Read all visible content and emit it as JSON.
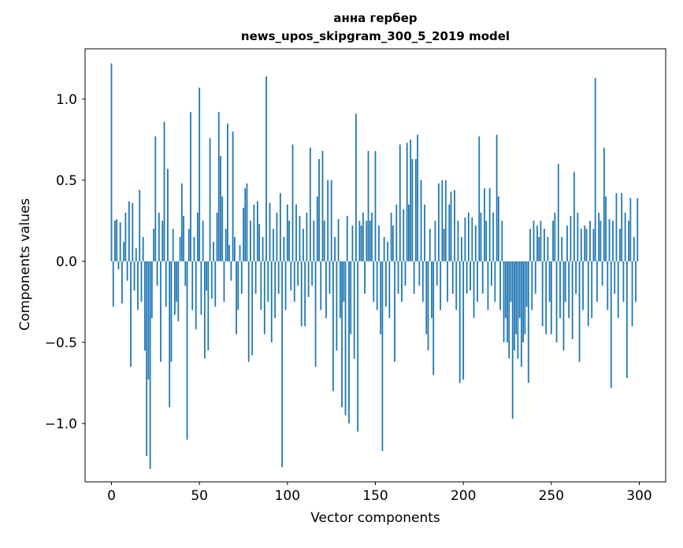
{
  "chart_data": {
    "type": "bar",
    "title_line1": "анна гербер",
    "title_line2": "news_upos_skipgram_300_5_2019 model",
    "xlabel": "Vector components",
    "ylabel": "Components values",
    "bar_color": "#1f77b4",
    "xlim": [
      -15,
      315
    ],
    "ylim": [
      -1.36,
      1.31
    ],
    "xticks": [
      0,
      50,
      100,
      150,
      200,
      250,
      300
    ],
    "yticks": [
      -1.0,
      -0.5,
      0.0,
      0.5,
      1.0
    ],
    "grid": false,
    "legend": false,
    "x_start": 0,
    "values": [
      1.22,
      -0.28,
      0.25,
      0.26,
      -0.05,
      0.24,
      -0.26,
      0.12,
      0.3,
      -0.12,
      0.37,
      -0.65,
      0.36,
      -0.18,
      0.08,
      -0.3,
      0.44,
      -0.25,
      0.15,
      -0.55,
      -1.2,
      -0.73,
      -1.28,
      -0.35,
      0.2,
      0.77,
      -0.15,
      0.3,
      -0.62,
      0.25,
      0.86,
      -0.28,
      0.57,
      -0.9,
      -0.62,
      0.2,
      -0.33,
      -0.25,
      -0.37,
      0.15,
      0.48,
      0.28,
      -0.15,
      -1.1,
      0.2,
      0.92,
      -0.3,
      0.15,
      -0.42,
      0.3,
      1.07,
      -0.33,
      0.25,
      -0.6,
      -0.18,
      -0.55,
      0.76,
      -0.23,
      0.12,
      -0.28,
      0.3,
      0.92,
      0.65,
      0.4,
      -0.25,
      0.2,
      0.85,
      0.1,
      -0.12,
      0.8,
      0.15,
      -0.45,
      -0.3,
      0.1,
      -0.2,
      0.33,
      0.45,
      0.48,
      -0.62,
      0.25,
      -0.58,
      0.35,
      -0.2,
      0.37,
      0.23,
      -0.3,
      0.15,
      -0.45,
      1.14,
      -0.25,
      0.36,
      -0.5,
      0.2,
      -0.35,
      0.3,
      -0.2,
      0.42,
      -1.27,
      0.15,
      -0.3,
      0.35,
      0.25,
      -0.18,
      0.72,
      -0.25,
      0.35,
      -0.15,
      0.28,
      -0.4,
      0.2,
      -0.4,
      0.3,
      -0.22,
      0.7,
      -0.15,
      0.25,
      -0.65,
      0.4,
      0.63,
      -0.3,
      0.68,
      0.25,
      -0.35,
      0.5,
      -0.2,
      0.5,
      -0.8,
      0.15,
      -0.55,
      0.26,
      -0.35,
      -0.9,
      -0.25,
      -0.95,
      0.28,
      -1.0,
      -0.45,
      0.22,
      -0.6,
      0.91,
      -1.05,
      0.25,
      0.22,
      0.3,
      -0.2,
      0.25,
      0.68,
      0.25,
      0.3,
      -0.25,
      0.68,
      -0.3,
      0.22,
      -0.45,
      -1.17,
      0.15,
      -0.28,
      0.12,
      -0.35,
      0.3,
      0.22,
      -0.62,
      0.35,
      -0.2,
      0.72,
      -0.25,
      0.32,
      -0.15,
      0.73,
      0.35,
      0.75,
      0.63,
      -0.2,
      0.63,
      0.78,
      -0.15,
      0.5,
      -0.25,
      0.35,
      -0.45,
      -0.55,
      0.2,
      -0.35,
      -0.7,
      0.25,
      -0.15,
      0.48,
      -0.3,
      0.5,
      0.2,
      0.5,
      -0.25,
      0.35,
      0.43,
      -0.2,
      0.44,
      -0.3,
      0.25,
      -0.75,
      0.15,
      -0.73,
      0.27,
      -0.2,
      0.3,
      -0.18,
      0.27,
      -0.35,
      0.22,
      -0.25,
      0.77,
      0.3,
      -0.2,
      0.45,
      0.25,
      -0.3,
      0.45,
      -0.15,
      0.3,
      -0.25,
      0.78,
      0.4,
      -0.3,
      0.25,
      -0.5,
      -0.35,
      -0.5,
      -0.6,
      -0.25,
      -0.97,
      -0.55,
      -0.45,
      -0.6,
      -0.35,
      -0.65,
      -0.5,
      -0.45,
      -0.28,
      -0.75,
      0.2,
      -0.3,
      0.25,
      -0.2,
      0.22,
      0.15,
      0.25,
      -0.4,
      0.2,
      -0.45,
      0.15,
      -0.25,
      -0.45,
      0.25,
      0.3,
      -0.5,
      0.6,
      -0.35,
      0.15,
      -0.55,
      -0.25,
      0.22,
      -0.35,
      0.28,
      -0.48,
      0.55,
      -0.2,
      0.3,
      -0.62,
      0.2,
      -0.3,
      0.22,
      0.2,
      -0.4,
      0.25,
      -0.35,
      0.2,
      1.13,
      -0.25,
      0.3,
      0.25,
      -0.15,
      0.7,
      0.4,
      -0.3,
      0.26,
      -0.78,
      0.25,
      -0.2,
      0.42,
      -0.35,
      0.2,
      0.42,
      -0.25,
      0.3,
      -0.72,
      0.25,
      0.39,
      -0.4,
      0.15,
      -0.25,
      0.39
    ]
  }
}
